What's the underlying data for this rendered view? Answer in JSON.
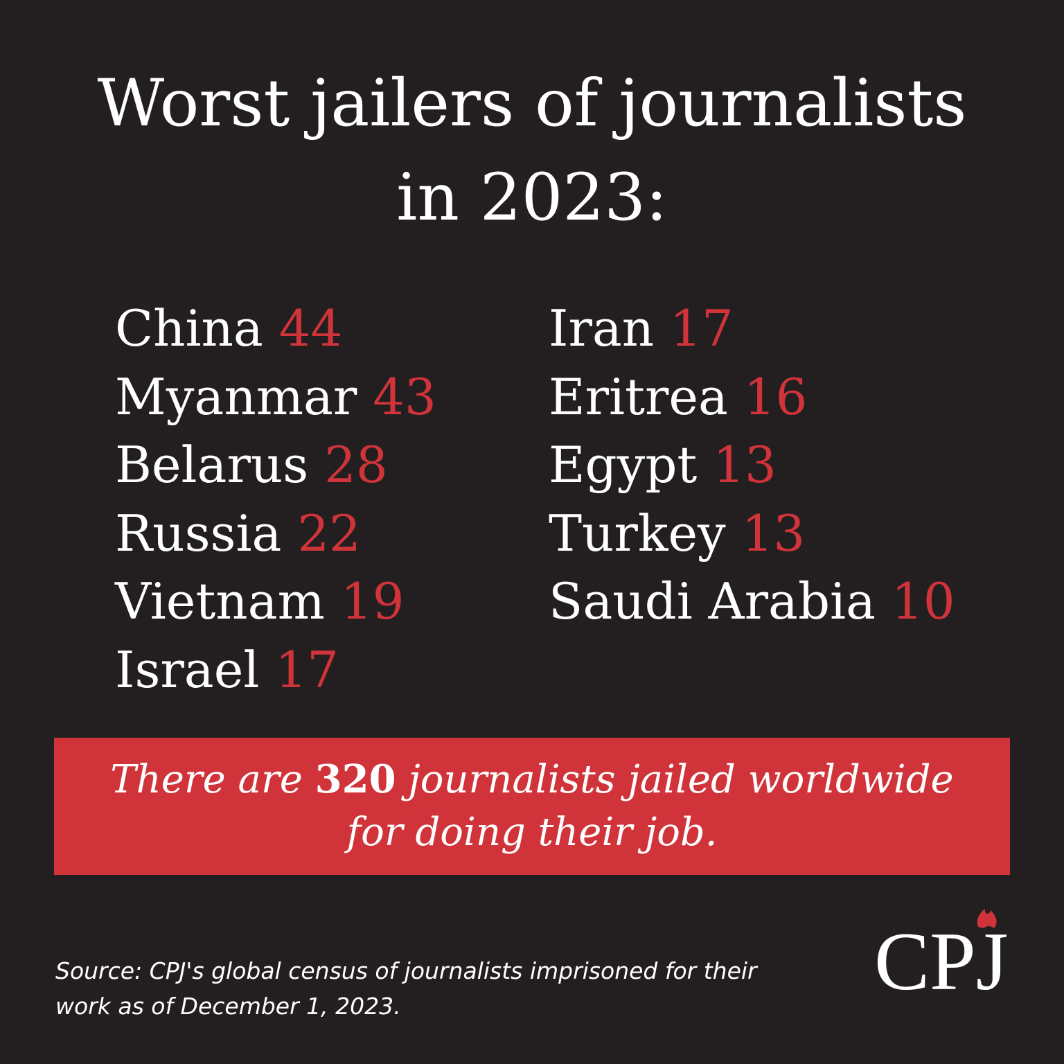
{
  "title": {
    "line1": "Worst jailers of journalists",
    "line2": "in 2023:"
  },
  "countries": [
    {
      "name": "China",
      "count": "44"
    },
    {
      "name": "Myanmar",
      "count": "43"
    },
    {
      "name": "Belarus",
      "count": "28"
    },
    {
      "name": "Russia",
      "count": "22"
    },
    {
      "name": "Vietnam",
      "count": "19"
    },
    {
      "name": "Israel",
      "count": "17"
    },
    {
      "name": "Iran",
      "count": "17"
    },
    {
      "name": "Eritrea",
      "count": "16"
    },
    {
      "name": "Egypt",
      "count": "13"
    },
    {
      "name": "Turkey",
      "count": "13"
    },
    {
      "name": "Saudi Arabia",
      "count": "10"
    }
  ],
  "banner": {
    "prefix": "There are ",
    "total": "320",
    "suffix": " journalists jailed worldwide",
    "line2": "for doing their job."
  },
  "source": {
    "line1": "Source: CPJ's global census of journalists imprisoned for their",
    "line2": "work as of December 1, 2023."
  },
  "logo": {
    "text": "CPJ",
    "icon": "flame-icon"
  },
  "colors": {
    "background": "#231f20",
    "accent": "#d0343a",
    "text": "#ffffff"
  }
}
